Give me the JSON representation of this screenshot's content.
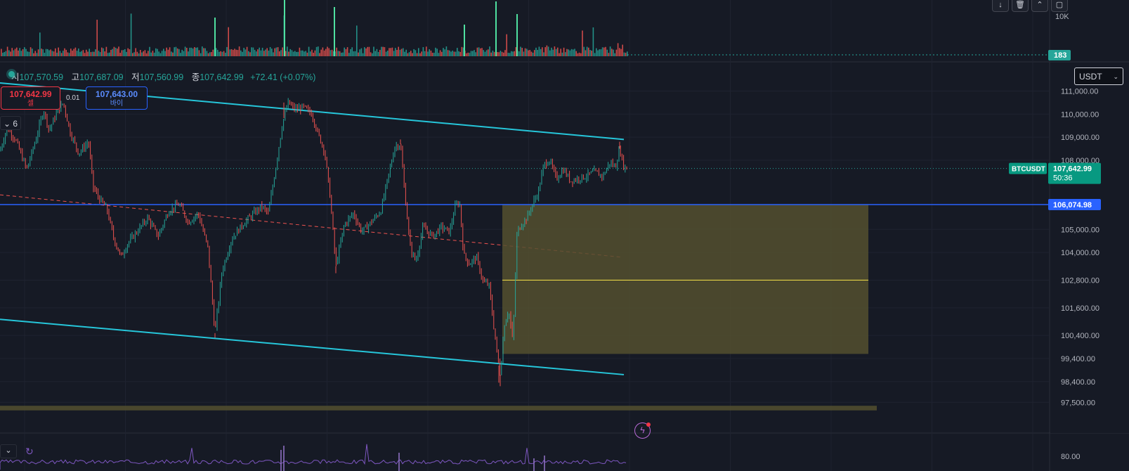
{
  "ohlc": {
    "open_label": "시",
    "open": "107,570.59",
    "high_label": "고",
    "high": "107,687.09",
    "low_label": "저",
    "low": "107,560.99",
    "close_label": "종",
    "close": "107,642.99",
    "change": "+72.41 (+0.07%)"
  },
  "trade": {
    "sell_price": "107,642.99",
    "sell_label": "셀",
    "buy_price": "107,643.00",
    "buy_label": "바이",
    "quantity": "0.01"
  },
  "indicator_collapse_label": "6",
  "currency_selector": "USDT",
  "top_buttons": [
    "↓",
    "🗑",
    "⌃",
    "▢"
  ],
  "colors": {
    "background": "#161a25",
    "up": "#26a69a",
    "down": "#ef5350",
    "channel": "#26c6da",
    "support_line": "#2962ff",
    "zone": "#54502f",
    "midline": "#f3e048"
  },
  "chart_data": {
    "type": "candlestick",
    "symbol": "BTCUSDT",
    "currency": "USDT",
    "last_price": 107642.99,
    "last_price_label": "107,642.99",
    "countdown": "50:36",
    "y_range": [
      96900,
      111600
    ],
    "y_ticks": [
      {
        "value": 111000,
        "label": "111,000.00"
      },
      {
        "value": 110000,
        "label": "110,000.00"
      },
      {
        "value": 109000,
        "label": "109,000.00"
      },
      {
        "value": 108000,
        "label": "108,000.00"
      },
      {
        "value": 105000,
        "label": "105,000.00"
      },
      {
        "value": 104000,
        "label": "104,000.00"
      },
      {
        "value": 102800,
        "label": "102,800.00"
      },
      {
        "value": 101600,
        "label": "101,600.00"
      },
      {
        "value": 100400,
        "label": "100,400.00"
      },
      {
        "value": 99400,
        "label": "99,400.00"
      },
      {
        "value": 98400,
        "label": "98,400.00"
      },
      {
        "value": 97500,
        "label": "97,500.00"
      }
    ],
    "horizontal_line": {
      "value": 106074.98,
      "label": "106,074.98"
    },
    "volume": {
      "axis_label": "10K",
      "last_label": "183"
    },
    "oscillator": {
      "axis_label": "80.00"
    },
    "price_path": [
      [
        0,
        108400
      ],
      [
        10,
        109400
      ],
      [
        22,
        108900
      ],
      [
        38,
        107600
      ],
      [
        52,
        109000
      ],
      [
        62,
        110200
      ],
      [
        70,
        109300
      ],
      [
        80,
        110000
      ],
      [
        90,
        110500
      ],
      [
        100,
        109200
      ],
      [
        112,
        108300
      ],
      [
        126,
        108800
      ],
      [
        133,
        106800
      ],
      [
        142,
        106300
      ],
      [
        152,
        105900
      ],
      [
        162,
        104600
      ],
      [
        172,
        103800
      ],
      [
        182,
        104400
      ],
      [
        195,
        104900
      ],
      [
        210,
        105500
      ],
      [
        225,
        104700
      ],
      [
        240,
        105800
      ],
      [
        255,
        106100
      ],
      [
        268,
        105300
      ],
      [
        282,
        105700
      ],
      [
        296,
        104200
      ],
      [
        306,
        100500
      ],
      [
        316,
        103200
      ],
      [
        330,
        104600
      ],
      [
        345,
        105200
      ],
      [
        358,
        105600
      ],
      [
        372,
        106000
      ],
      [
        382,
        105700
      ],
      [
        392,
        107600
      ],
      [
        402,
        109600
      ],
      [
        410,
        110500
      ],
      [
        420,
        110200
      ],
      [
        432,
        110300
      ],
      [
        444,
        110000
      ],
      [
        452,
        109200
      ],
      [
        462,
        108400
      ],
      [
        470,
        106400
      ],
      [
        478,
        103400
      ],
      [
        490,
        105200
      ],
      [
        503,
        105700
      ],
      [
        515,
        104900
      ],
      [
        528,
        105300
      ],
      [
        542,
        105800
      ],
      [
        552,
        107200
      ],
      [
        562,
        108600
      ],
      [
        570,
        108700
      ],
      [
        576,
        106600
      ],
      [
        584,
        104200
      ],
      [
        592,
        103600
      ],
      [
        602,
        105100
      ],
      [
        616,
        104700
      ],
      [
        628,
        105100
      ],
      [
        640,
        104900
      ],
      [
        648,
        106000
      ],
      [
        654,
        106200
      ],
      [
        660,
        103900
      ],
      [
        668,
        103500
      ],
      [
        678,
        103800
      ],
      [
        688,
        102700
      ],
      [
        696,
        102600
      ],
      [
        702,
        101000
      ],
      [
        708,
        99500
      ],
      [
        712,
        98700
      ],
      [
        718,
        100900
      ],
      [
        724,
        101500
      ],
      [
        730,
        100100
      ],
      [
        736,
        104900
      ],
      [
        742,
        105200
      ],
      [
        750,
        105500
      ],
      [
        758,
        106100
      ],
      [
        766,
        106600
      ],
      [
        774,
        107800
      ],
      [
        782,
        108000
      ],
      [
        792,
        107200
      ],
      [
        802,
        107600
      ],
      [
        812,
        107100
      ],
      [
        822,
        107200
      ],
      [
        834,
        107300
      ],
      [
        846,
        107500
      ],
      [
        858,
        107300
      ],
      [
        868,
        107900
      ],
      [
        876,
        107700
      ],
      [
        882,
        108500
      ],
      [
        888,
        107700
      ],
      [
        893,
        107640
      ]
    ],
    "drawings": [
      {
        "type": "trendline",
        "color": "#26c6da",
        "from": [
          0,
          111350
        ],
        "to": [
          888,
          108900
        ]
      },
      {
        "type": "trendline",
        "color": "#26c6da",
        "from": [
          0,
          101100
        ],
        "to": [
          888,
          98700
        ]
      },
      {
        "type": "dashed-trendline",
        "color": "#ef5350",
        "from": [
          0,
          106500
        ],
        "to": [
          883,
          103800
        ]
      },
      {
        "type": "zone",
        "from_x": 715,
        "to_x": 1236,
        "top": 106074.98,
        "bottom": 99600,
        "mid": 102800
      },
      {
        "type": "zone",
        "from_x": 0,
        "to_x": 1248,
        "top": 97350,
        "bottom": 97150
      }
    ]
  }
}
